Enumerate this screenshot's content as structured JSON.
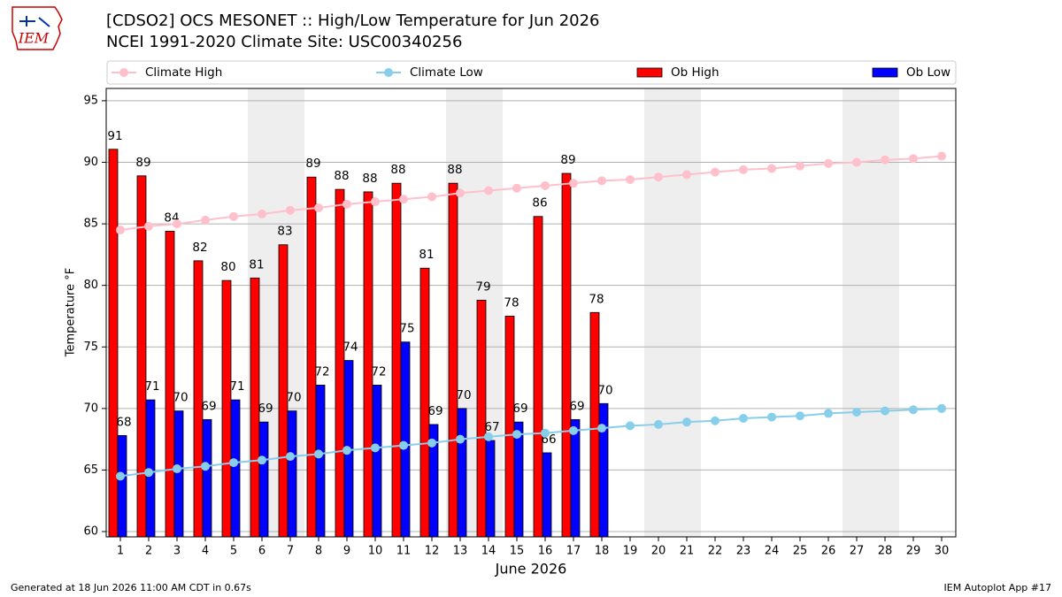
{
  "logo_text": "IEM",
  "footer_left": "Generated at 18 Jun 2026 11:00 AM CDT in 0.67s",
  "footer_right": "IEM Autoplot App #17",
  "chart_data": {
    "type": "bar",
    "title": "[CDSO2] OCS MESONET :: High/Low Temperature for Jun 2026",
    "subtitle": "NCEI 1991-2020 Climate Site: USC00340256",
    "xlabel": "June 2026",
    "ylabel": "Temperature °F",
    "categories": [
      1,
      2,
      3,
      4,
      5,
      6,
      7,
      8,
      9,
      10,
      11,
      12,
      13,
      14,
      15,
      16,
      17,
      18,
      19,
      20,
      21,
      22,
      23,
      24,
      25,
      26,
      27,
      28,
      29,
      30
    ],
    "xlim": [
      0.5,
      30.5
    ],
    "ylim": [
      59.57,
      96
    ],
    "yticks": [
      60,
      65,
      70,
      75,
      80,
      85,
      90,
      95
    ],
    "grid": true,
    "legend": "top",
    "shaded_days": [
      6,
      7,
      13,
      14,
      20,
      21,
      27,
      28
    ],
    "series": [
      {
        "name": "Climate High",
        "type": "line",
        "color": "#ffc0cb",
        "values": [
          84.5,
          84.8,
          85.0,
          85.3,
          85.6,
          85.8,
          86.1,
          86.3,
          86.6,
          86.8,
          87.0,
          87.2,
          87.5,
          87.7,
          87.9,
          88.1,
          88.3,
          88.5,
          88.6,
          88.8,
          89.0,
          89.2,
          89.4,
          89.5,
          89.7,
          89.9,
          90.0,
          90.2,
          90.3,
          90.5
        ]
      },
      {
        "name": "Climate Low",
        "type": "line",
        "color": "#87ceeb",
        "values": [
          64.5,
          64.8,
          65.1,
          65.3,
          65.6,
          65.8,
          66.1,
          66.3,
          66.6,
          66.8,
          67.0,
          67.2,
          67.5,
          67.7,
          67.9,
          68.0,
          68.2,
          68.4,
          68.6,
          68.7,
          68.9,
          69.0,
          69.2,
          69.3,
          69.4,
          69.6,
          69.7,
          69.8,
          69.9,
          70.0
        ]
      },
      {
        "name": "Ob High",
        "type": "bar",
        "color": "#ff0000",
        "values": [
          91.06,
          88.9,
          84.4,
          82.0,
          80.4,
          80.6,
          83.3,
          88.8,
          87.8,
          87.6,
          88.3,
          81.4,
          88.3,
          78.8,
          77.5,
          85.6,
          89.1,
          77.8,
          null,
          null,
          null,
          null,
          null,
          null,
          null,
          null,
          null,
          null,
          null,
          null
        ],
        "value_labels": [
          "91",
          "89",
          "84",
          "82",
          "80",
          "81",
          "83",
          "89",
          "88",
          "88",
          "88",
          "81",
          "88",
          "79",
          "78",
          "86",
          "89",
          "78",
          null,
          null,
          null,
          null,
          null,
          null,
          null,
          null,
          null,
          null,
          null,
          null
        ]
      },
      {
        "name": "Ob Low",
        "type": "bar",
        "color": "#0000ff",
        "values": [
          67.8,
          70.7,
          69.8,
          69.1,
          70.7,
          68.9,
          69.8,
          71.9,
          73.9,
          71.9,
          75.4,
          68.7,
          70.0,
          67.4,
          68.9,
          66.4,
          69.1,
          70.4,
          null,
          null,
          null,
          null,
          null,
          null,
          null,
          null,
          null,
          null,
          null,
          null
        ],
        "value_labels": [
          "68",
          "71",
          "70",
          "69",
          "71",
          "69",
          "70",
          "72",
          "74",
          "72",
          "75",
          "69",
          "70",
          "67",
          "69",
          "66",
          "69",
          "70",
          null,
          null,
          null,
          null,
          null,
          null,
          null,
          null,
          null,
          null,
          null,
          null
        ]
      }
    ]
  }
}
